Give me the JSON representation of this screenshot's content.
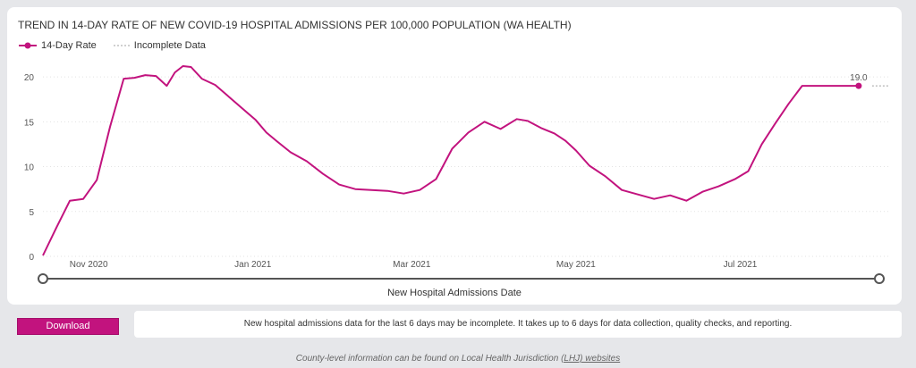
{
  "chart_data": {
    "type": "line",
    "title": "TREND IN 14-DAY RATE OF NEW COVID-19 HOSPITAL ADMISSIONS PER 100,000 POPULATION (WA HEALTH)",
    "xlabel": "New Hospital Admissions Date",
    "ylabel": "",
    "x_tick_labels": [
      "Nov 2020",
      "Jan 2021",
      "Mar 2021",
      "May 2021",
      "Jul 2021"
    ],
    "x_tick_dates": [
      "2020-11-01",
      "2021-01-01",
      "2021-03-01",
      "2021-05-01",
      "2021-07-01"
    ],
    "x_range": [
      "2020-10-15",
      "2021-08-25"
    ],
    "y_ticks": [
      0,
      5,
      10,
      15,
      20
    ],
    "ylim": [
      0,
      22
    ],
    "grid": true,
    "legend": [
      {
        "label": "14-Day Rate",
        "style": "solid-marker"
      },
      {
        "label": "Incomplete Data",
        "style": "dashed"
      }
    ],
    "series": [
      {
        "name": "14-Day Rate",
        "color": "#c2137e",
        "x": [
          "2020-10-15",
          "2020-10-20",
          "2020-10-25",
          "2020-10-30",
          "2020-11-04",
          "2020-11-09",
          "2020-11-14",
          "2020-11-18",
          "2020-11-22",
          "2020-11-26",
          "2020-11-30",
          "2020-12-03",
          "2020-12-06",
          "2020-12-09",
          "2020-12-13",
          "2020-12-18",
          "2020-12-23",
          "2020-12-28",
          "2021-01-02",
          "2021-01-06",
          "2021-01-10",
          "2021-01-15",
          "2021-01-21",
          "2021-01-27",
          "2021-02-02",
          "2021-02-08",
          "2021-02-14",
          "2021-02-20",
          "2021-02-26",
          "2021-03-04",
          "2021-03-10",
          "2021-03-16",
          "2021-03-22",
          "2021-03-28",
          "2021-04-03",
          "2021-04-09",
          "2021-04-13",
          "2021-04-18",
          "2021-04-23",
          "2021-04-27",
          "2021-05-01",
          "2021-05-06",
          "2021-05-12",
          "2021-05-18",
          "2021-05-24",
          "2021-05-30",
          "2021-06-05",
          "2021-06-11",
          "2021-06-17",
          "2021-06-23",
          "2021-06-29",
          "2021-07-04",
          "2021-07-09",
          "2021-07-14",
          "2021-07-19",
          "2021-07-24",
          "2021-07-29",
          "2021-08-02",
          "2021-08-06",
          "2021-08-10",
          "2021-08-14"
        ],
        "values": [
          0.1,
          3.2,
          6.2,
          6.4,
          8.5,
          14.5,
          19.8,
          19.9,
          20.2,
          20.1,
          19.0,
          20.5,
          21.2,
          21.1,
          19.8,
          19.1,
          17.8,
          16.5,
          15.2,
          13.8,
          12.8,
          11.6,
          10.6,
          9.2,
          8.0,
          7.5,
          7.4,
          7.3,
          7.0,
          7.4,
          8.6,
          12.0,
          13.8,
          15.0,
          14.2,
          15.3,
          15.1,
          14.3,
          13.7,
          12.9,
          11.8,
          10.1,
          8.9,
          7.4,
          6.9,
          6.4,
          6.8,
          6.2,
          7.2,
          7.8,
          8.6,
          9.5,
          12.5,
          14.8,
          17.0,
          19.0,
          19.0,
          19.0,
          19.0,
          19.0,
          19.0
        ],
        "last_label": "19.0"
      },
      {
        "name": "Incomplete Data",
        "color": "#a0a0a0",
        "x": [
          "2021-08-19",
          "2021-08-25"
        ],
        "values": [
          19.0,
          19.0
        ]
      }
    ]
  },
  "download_label": "Download",
  "note_text": "New hospital admissions data for the last 6 days may be incomplete. It takes up to 6 days for data collection, quality checks, and reporting.",
  "footer": {
    "prefix": "County-level information can be found on Local Health Jurisdiction ",
    "link_text": "(LHJ) websites"
  }
}
